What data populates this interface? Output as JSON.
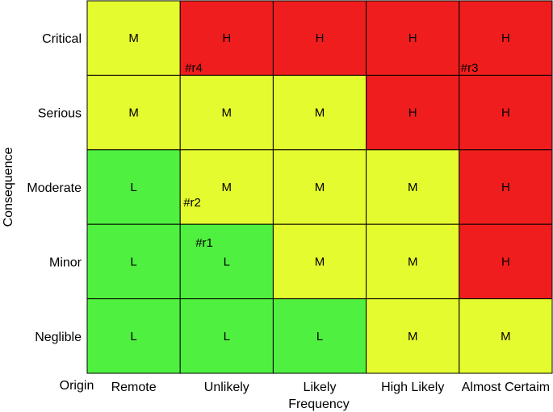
{
  "chart_data": {
    "type": "heatmap",
    "title": "",
    "xlabel": "Frequency",
    "ylabel": "Consequence",
    "corner_label": "Origin",
    "x_categories": [
      "Remote",
      "Unlikely",
      "Likely",
      "High Likely",
      "Almost Certaim"
    ],
    "y_categories": [
      "Critical",
      "Serious",
      "Moderate",
      "Minor",
      "Neglible"
    ],
    "ratings": [
      [
        "M",
        "H",
        "H",
        "H",
        "H"
      ],
      [
        "M",
        "M",
        "M",
        "H",
        "H"
      ],
      [
        "L",
        "M",
        "M",
        "M",
        "H"
      ],
      [
        "L",
        "L",
        "M",
        "M",
        "H"
      ],
      [
        "L",
        "L",
        "L",
        "M",
        "M"
      ]
    ],
    "rating_colors": {
      "L": "#4ff03f",
      "M": "#e3fb2f",
      "H": "#ef1d1d"
    },
    "markers": [
      {
        "label": "#r4",
        "x": "Unlikely",
        "y": "Critical"
      },
      {
        "label": "#r3",
        "x": "Almost Certaim",
        "y": "Critical"
      },
      {
        "label": "#r2",
        "x": "Unlikely",
        "y": "Moderate"
      },
      {
        "label": "#r1",
        "x": "Unlikely",
        "y": "Minor"
      }
    ],
    "grid": true,
    "legend": "none"
  }
}
